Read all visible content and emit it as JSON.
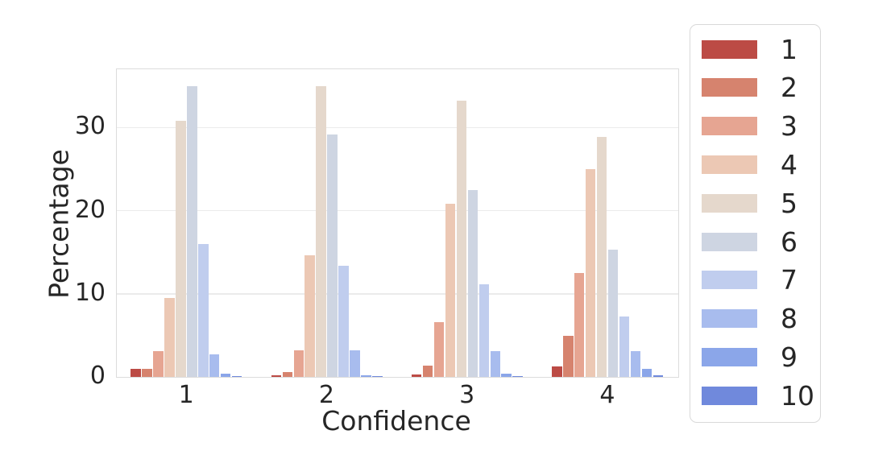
{
  "chart_data": {
    "type": "bar",
    "title": "",
    "xlabel": "Confidence",
    "ylabel": "Percentage",
    "categories": [
      "1",
      "2",
      "3",
      "4"
    ],
    "yticks": [
      0,
      10,
      20,
      30
    ],
    "ylim": [
      0,
      37
    ],
    "grid": true,
    "legend_position": "outside-right",
    "series": [
      {
        "name": "1",
        "color": "#bc4b45",
        "values": [
          1.0,
          0.15,
          0.3,
          1.3
        ]
      },
      {
        "name": "2",
        "color": "#d6836e",
        "values": [
          1.0,
          0.6,
          1.4,
          4.9
        ]
      },
      {
        "name": "3",
        "color": "#e6a592",
        "values": [
          3.1,
          3.2,
          6.6,
          12.5
        ]
      },
      {
        "name": "4",
        "color": "#ecc8b4",
        "values": [
          9.5,
          14.6,
          20.8,
          25.0
        ]
      },
      {
        "name": "5",
        "color": "#e5d8cc",
        "values": [
          30.8,
          35.0,
          33.2,
          28.9
        ]
      },
      {
        "name": "6",
        "color": "#ced5e2",
        "values": [
          35.0,
          29.2,
          22.5,
          15.3
        ]
      },
      {
        "name": "7",
        "color": "#c0cdee",
        "values": [
          16.0,
          13.4,
          11.1,
          7.3
        ]
      },
      {
        "name": "8",
        "color": "#a8bcee",
        "values": [
          2.7,
          3.2,
          3.1,
          3.1
        ]
      },
      {
        "name": "9",
        "color": "#8ba6e9",
        "values": [
          0.4,
          0.2,
          0.4,
          1.0
        ]
      },
      {
        "name": "10",
        "color": "#7089dc",
        "values": [
          0.1,
          0.05,
          0.1,
          0.2
        ]
      }
    ]
  }
}
